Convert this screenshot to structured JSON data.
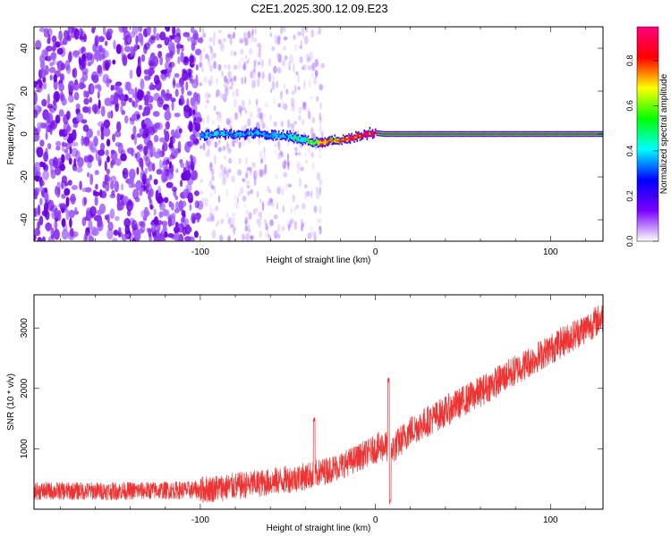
{
  "title": "C2E1.2025.300.12.09.E23",
  "chart_data": [
    {
      "type": "heatmap",
      "xlabel": "Height of straight line (km)",
      "ylabel": "Frequency (Hz)",
      "xlim": [
        -195,
        130
      ],
      "ylim": [
        -50,
        50
      ],
      "xticks": [
        -100,
        0,
        100
      ],
      "xtick_labels": [
        "-100",
        "0",
        "100"
      ],
      "yticks": [
        -40,
        -20,
        0,
        20,
        40
      ],
      "ytick_labels": [
        "-40",
        "-20",
        "0",
        "20",
        "40"
      ],
      "colorbar": {
        "label": "Normalized spectral amplitude",
        "range": [
          0,
          0.95
        ],
        "ticks": [
          0,
          0.2,
          0.4,
          0.6,
          0.8
        ],
        "tick_labels": [
          "0.0",
          "0.2",
          "0.4",
          "0.6",
          "0.8"
        ],
        "colors": [
          "#ffffff",
          "#7a00ff",
          "#0000ff",
          "#00ffff",
          "#00ff00",
          "#ffff00",
          "#ff0000",
          "#ff0080"
        ]
      },
      "noise_region": [
        -195,
        -100
      ],
      "sparse_noise_region": [
        -100,
        -30
      ],
      "signal_trace": {
        "x": [
          -100,
          -90,
          -80,
          -70,
          -60,
          -50,
          -40,
          -35,
          -30,
          -25,
          -20,
          -15,
          -10,
          -5,
          0,
          5,
          10,
          20,
          40,
          60,
          80,
          100,
          130
        ],
        "freq": [
          -1,
          0.5,
          -0.5,
          0.5,
          -0.5,
          -1,
          -3,
          -4,
          -3.5,
          -3,
          -3,
          -2,
          -1,
          0,
          0.5,
          0,
          0,
          0,
          0,
          0,
          0,
          0,
          0
        ],
        "amplitude": [
          0.35,
          0.4,
          0.35,
          0.4,
          0.35,
          0.4,
          0.5,
          0.6,
          0.7,
          0.75,
          0.8,
          0.8,
          0.8,
          0.85,
          0.85,
          0.9,
          0.9,
          0.9,
          0.9,
          0.9,
          0.9,
          0.9,
          0.9
        ]
      }
    },
    {
      "type": "line",
      "xlabel": "Height of straight line (km)",
      "ylabel": "SNR (10 * v/v)",
      "xlim": [
        -195,
        130
      ],
      "ylim": [
        0,
        3550
      ],
      "xticks": [
        -100,
        0,
        100
      ],
      "xtick_labels": [
        "-100",
        "0",
        "100"
      ],
      "yticks": [
        1000,
        2000,
        3000
      ],
      "ytick_labels": [
        "1000",
        "2000",
        "3000"
      ],
      "color": "#ee3333",
      "series": [
        {
          "name": "SNR",
          "x": [
            -195,
            -150,
            -100,
            -80,
            -60,
            -40,
            -30,
            -20,
            -10,
            0,
            5,
            10,
            15,
            20,
            40,
            60,
            80,
            100,
            120,
            130
          ],
          "values": [
            300,
            300,
            320,
            380,
            450,
            540,
            620,
            720,
            850,
            1000,
            1050,
            1000,
            1150,
            1300,
            1620,
            1950,
            2300,
            2650,
            3000,
            3180
          ],
          "spikes": [
            {
              "x": -35,
              "value": 1470
            },
            {
              "x": 7.5,
              "value": 2130
            },
            {
              "x": 8.5,
              "value": 120
            }
          ]
        }
      ]
    }
  ]
}
